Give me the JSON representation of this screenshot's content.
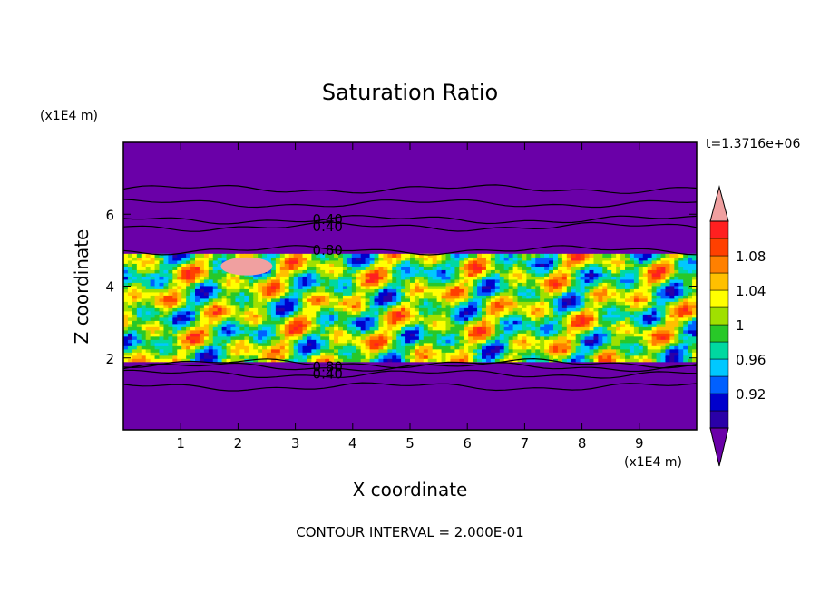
{
  "chart_data": {
    "type": "heatmap",
    "title": "Saturation Ratio",
    "xlabel": "X coordinate",
    "ylabel": "Z coordinate",
    "x_unit": "(x1E4 m)",
    "y_unit": "(x1E4 m)",
    "time_label": "t=1.3716e+06",
    "footer": "CONTOUR INTERVAL = 2.000E-01",
    "xlim": [
      0,
      10
    ],
    "ylim": [
      0,
      8
    ],
    "x_ticks": [
      "1",
      "2",
      "3",
      "4",
      "5",
      "6",
      "7",
      "8",
      "9"
    ],
    "y_ticks": [
      "2",
      "4",
      "6"
    ],
    "field": {
      "background_value": 0.4,
      "turbulent_layer_z": [
        1.9,
        4.9
      ],
      "patch_z": [
        4.3,
        4.8
      ],
      "patch_x": [
        1.7,
        2.6
      ],
      "contour_levels_z": [
        {
          "z": 6.7,
          "label": ""
        },
        {
          "z": 6.3,
          "label": ""
        },
        {
          "z": 5.85,
          "label": "0.40"
        },
        {
          "z": 5.65,
          "label": "0.40"
        },
        {
          "z": 5.0,
          "label": "0.80"
        },
        {
          "z": 1.85,
          "label": ""
        },
        {
          "z": 1.75,
          "label": "0.80"
        },
        {
          "z": 1.55,
          "label": "0.40"
        },
        {
          "z": 1.2,
          "label": ""
        }
      ]
    },
    "colorbar": {
      "colors": [
        "#6a00a8",
        "#2a00a8",
        "#0000cc",
        "#0060ff",
        "#00c8ff",
        "#00d8a0",
        "#28c828",
        "#a0e000",
        "#ffff00",
        "#ffc000",
        "#ff8000",
        "#ff4000",
        "#ff2020",
        "#f0a0a0"
      ],
      "tick_labels": [
        "0.92",
        "0.96",
        "1",
        "1.04",
        "1.08"
      ],
      "under_color": "#6a00a8",
      "over_color": "#f0a0a0"
    }
  }
}
